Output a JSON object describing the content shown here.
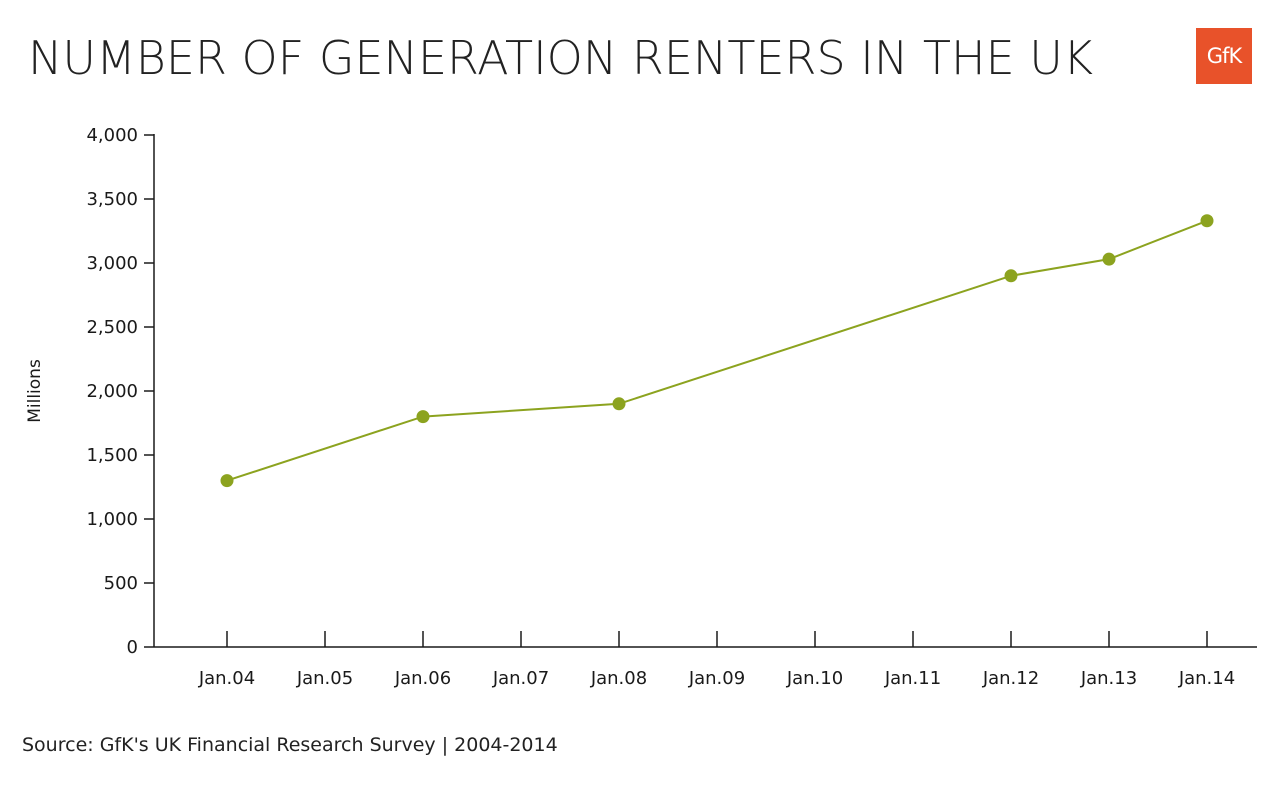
{
  "logo": {
    "text": "GfK",
    "color": "#e8522a"
  },
  "chart_data": {
    "type": "line",
    "title": "NUMBER OF GENERATION RENTERS IN THE UK",
    "xlabel": "",
    "ylabel": "Millions",
    "categories": [
      "Jan.04",
      "Jan.05",
      "Jan.06",
      "Jan.07",
      "Jan.08",
      "Jan.09",
      "Jan.10",
      "Jan.11",
      "Jan.12",
      "Jan.13",
      "Jan.14"
    ],
    "y_ticks": [
      "0",
      "500",
      "1,000",
      "1,500",
      "2,000",
      "2,500",
      "3,000",
      "3,500",
      "4,000"
    ],
    "ylim": [
      0,
      4000
    ],
    "grid": false,
    "series": [
      {
        "color": "#8ca31f",
        "points": [
          {
            "x": "Jan.04",
            "y": 1300
          },
          {
            "x": "Jan.06",
            "y": 1800
          },
          {
            "x": "Jan.08",
            "y": 1900
          },
          {
            "x": "Jan.12",
            "y": 2900
          },
          {
            "x": "Jan.13",
            "y": 3030
          },
          {
            "x": "Jan.14",
            "y": 3330
          }
        ]
      }
    ]
  },
  "source": "Source: GfK's UK Financial Research Survey | 2004-2014"
}
